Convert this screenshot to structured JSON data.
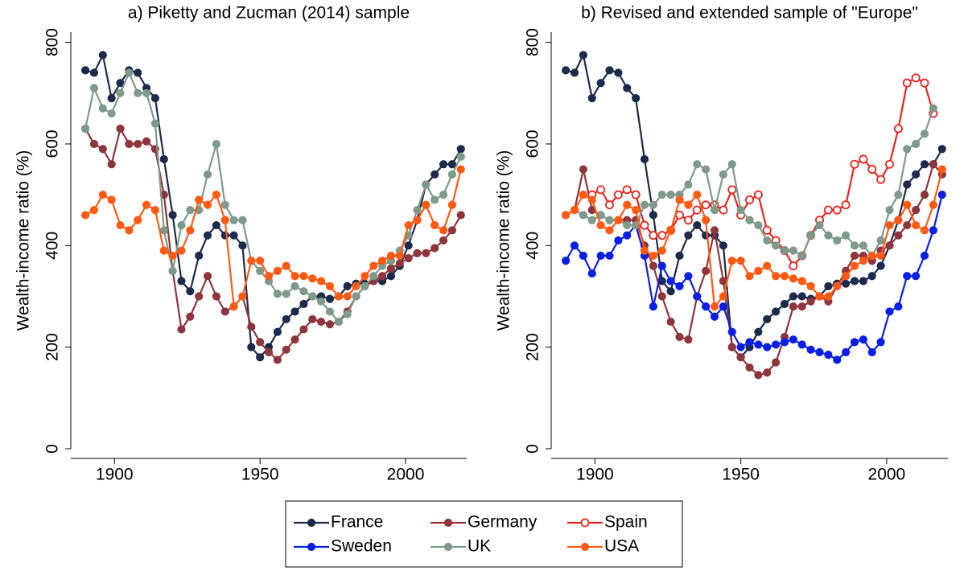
{
  "chart_data": [
    {
      "type": "line",
      "title": "a) Piketty and Zucman (2014) sample",
      "y_label": "Wealth-income ratio (%)",
      "x": [
        1890,
        1893,
        1896,
        1899,
        1902,
        1905,
        1908,
        1911,
        1914,
        1917,
        1920,
        1923,
        1926,
        1929,
        1932,
        1935,
        1938,
        1941,
        1944,
        1947,
        1950,
        1953,
        1956,
        1959,
        1962,
        1965,
        1968,
        1971,
        1974,
        1977,
        1980,
        1983,
        1986,
        1989,
        1992,
        1995,
        1998,
        2001,
        2004,
        2007,
        2010,
        2013,
        2016,
        2019
      ],
      "xlim": [
        1885,
        2021
      ],
      "xticks": [
        1900,
        1950,
        2000
      ],
      "ylim": [
        0,
        820
      ],
      "yticks": [
        0,
        200,
        400,
        600,
        800
      ],
      "series": [
        {
          "name": "France",
          "color": "#1c2b4c",
          "values": [
            745,
            740,
            775,
            690,
            720,
            745,
            740,
            710,
            690,
            570,
            460,
            330,
            310,
            380,
            420,
            440,
            420,
            420,
            400,
            200,
            180,
            200,
            230,
            255,
            270,
            285,
            300,
            300,
            295,
            300,
            320,
            325,
            325,
            330,
            330,
            340,
            360,
            400,
            450,
            520,
            540,
            560,
            560,
            590
          ]
        },
        {
          "name": "Germany",
          "color": "#8f353c",
          "values": [
            630,
            600,
            590,
            560,
            630,
            600,
            600,
            605,
            590,
            500,
            350,
            235,
            260,
            300,
            340,
            300,
            270,
            280,
            300,
            240,
            210,
            190,
            175,
            195,
            215,
            235,
            255,
            250,
            245,
            250,
            270,
            300,
            320,
            330,
            340,
            355,
            365,
            375,
            385,
            385,
            395,
            410,
            430,
            460
          ]
        },
        {
          "name": "UK",
          "color": "#7d9a8a",
          "values": [
            630,
            710,
            670,
            660,
            700,
            740,
            700,
            700,
            640,
            430,
            350,
            440,
            470,
            470,
            540,
            600,
            480,
            450,
            450,
            370,
            350,
            330,
            305,
            305,
            320,
            310,
            300,
            290,
            270,
            250,
            265,
            300,
            320,
            340,
            360,
            370,
            390,
            420,
            470,
            520,
            490,
            500,
            540,
            575
          ]
        },
        {
          "name": "USA",
          "color": "#ff5a14",
          "values": [
            460,
            470,
            500,
            490,
            440,
            430,
            450,
            480,
            470,
            390,
            380,
            390,
            430,
            490,
            480,
            500,
            450,
            280,
            300,
            370,
            370,
            340,
            350,
            360,
            340,
            340,
            335,
            330,
            320,
            300,
            300,
            320,
            340,
            360,
            370,
            380,
            380,
            440,
            450,
            480,
            440,
            430,
            480,
            550
          ]
        }
      ]
    },
    {
      "type": "line",
      "title": "b) Revised and extended sample of \"Europe\"",
      "y_label": "Wealth-income ratio (%)",
      "x": [
        1890,
        1893,
        1896,
        1899,
        1902,
        1905,
        1908,
        1911,
        1914,
        1917,
        1920,
        1923,
        1926,
        1929,
        1932,
        1935,
        1938,
        1941,
        1944,
        1947,
        1950,
        1953,
        1956,
        1959,
        1962,
        1965,
        1968,
        1971,
        1974,
        1977,
        1980,
        1983,
        1986,
        1989,
        1992,
        1995,
        1998,
        2001,
        2004,
        2007,
        2010,
        2013,
        2016,
        2019
      ],
      "xlim": [
        1885,
        2021
      ],
      "xticks": [
        1900,
        1950,
        2000
      ],
      "ylim": [
        0,
        820
      ],
      "yticks": [
        0,
        200,
        400,
        600,
        800
      ],
      "legend": "bottom",
      "series": [
        {
          "name": "France",
          "color": "#1c2b4c",
          "values": [
            745,
            740,
            775,
            690,
            720,
            745,
            740,
            710,
            690,
            570,
            460,
            330,
            310,
            380,
            420,
            440,
            420,
            420,
            400,
            200,
            180,
            200,
            230,
            255,
            270,
            285,
            300,
            300,
            295,
            300,
            320,
            325,
            325,
            330,
            330,
            340,
            360,
            400,
            450,
            520,
            540,
            560,
            560,
            590
          ]
        },
        {
          "name": "Germany",
          "color": "#8f353c",
          "values": [
            460,
            470,
            550,
            470,
            460,
            450,
            450,
            450,
            450,
            400,
            360,
            300,
            250,
            220,
            215,
            300,
            350,
            430,
            330,
            200,
            180,
            160,
            145,
            150,
            170,
            220,
            280,
            280,
            290,
            300,
            290,
            320,
            350,
            380,
            380,
            370,
            390,
            400,
            420,
            440,
            470,
            500,
            560,
            540
          ]
        },
        {
          "name": "Spain",
          "color": "#e8251f",
          "hollow": true,
          "values": [
            null,
            null,
            null,
            500,
            510,
            480,
            500,
            510,
            500,
            440,
            420,
            420,
            430,
            460,
            450,
            470,
            480,
            480,
            470,
            510,
            460,
            490,
            500,
            430,
            410,
            390,
            360,
            380,
            420,
            450,
            470,
            470,
            480,
            560,
            570,
            550,
            530,
            560,
            630,
            720,
            730,
            720,
            660,
            null
          ]
        },
        {
          "name": "Sweden",
          "color": "#0a1fe6",
          "values": [
            370,
            400,
            380,
            345,
            380,
            380,
            410,
            420,
            440,
            380,
            280,
            360,
            330,
            320,
            340,
            300,
            280,
            260,
            280,
            230,
            200,
            210,
            205,
            200,
            205,
            210,
            215,
            205,
            195,
            190,
            185,
            175,
            190,
            210,
            215,
            190,
            210,
            270,
            280,
            340,
            340,
            380,
            430,
            500
          ]
        },
        {
          "name": "UK",
          "color": "#7d9a8a",
          "values": [
            460,
            470,
            460,
            450,
            460,
            450,
            450,
            440,
            440,
            480,
            480,
            500,
            500,
            500,
            520,
            560,
            550,
            470,
            540,
            560,
            470,
            450,
            440,
            410,
            400,
            390,
            390,
            380,
            420,
            440,
            420,
            410,
            420,
            400,
            400,
            380,
            410,
            470,
            500,
            590,
            600,
            620,
            670,
            null
          ]
        },
        {
          "name": "USA",
          "color": "#ff5a14",
          "values": [
            460,
            470,
            500,
            490,
            440,
            430,
            450,
            480,
            470,
            390,
            380,
            390,
            430,
            490,
            480,
            500,
            450,
            280,
            300,
            370,
            370,
            340,
            350,
            360,
            340,
            340,
            335,
            330,
            320,
            300,
            300,
            320,
            340,
            360,
            370,
            380,
            380,
            440,
            450,
            480,
            440,
            430,
            480,
            550
          ]
        }
      ]
    }
  ]
}
